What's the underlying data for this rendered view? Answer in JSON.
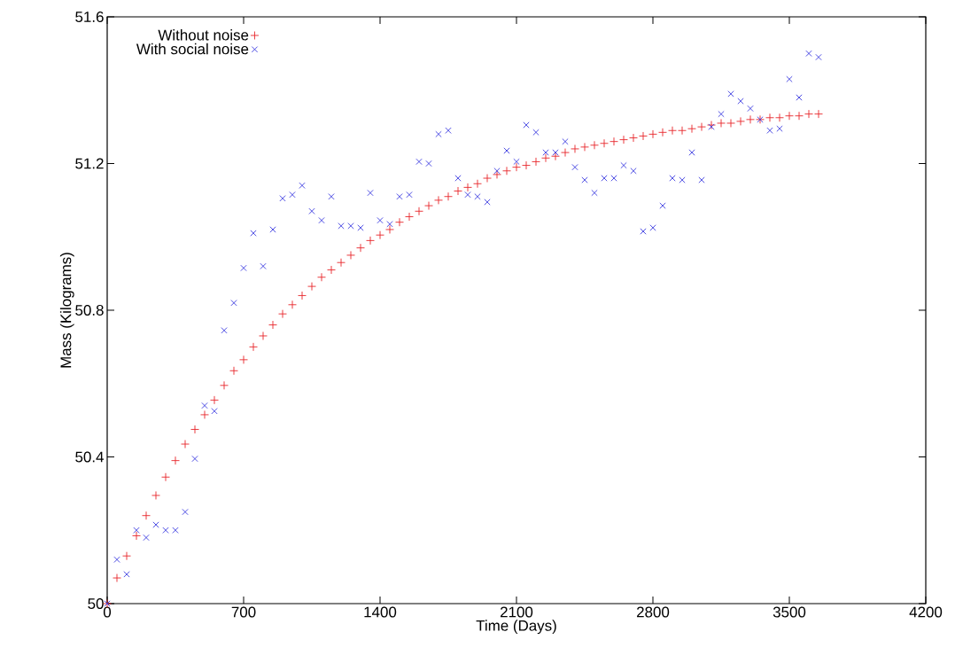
{
  "chart_data": {
    "type": "scatter",
    "xlabel": "Time (Days)",
    "ylabel": "Mass (Kilograms)",
    "x": [
      0,
      50,
      100,
      150,
      200,
      250,
      300,
      350,
      400,
      450,
      500,
      550,
      600,
      650,
      700,
      750,
      800,
      850,
      900,
      950,
      1000,
      1050,
      1100,
      1150,
      1200,
      1250,
      1300,
      1350,
      1400,
      1450,
      1500,
      1550,
      1600,
      1650,
      1700,
      1750,
      1800,
      1850,
      1900,
      1950,
      2000,
      2050,
      2100,
      2150,
      2200,
      2250,
      2300,
      2350,
      2400,
      2450,
      2500,
      2550,
      2600,
      2650,
      2700,
      2750,
      2800,
      2850,
      2900,
      2950,
      3000,
      3050,
      3100,
      3150,
      3200,
      3250,
      3300,
      3350,
      3400,
      3450,
      3500,
      3550,
      3600,
      3650
    ],
    "series": [
      {
        "name": "Without noise",
        "color": "#e8262a",
        "marker": "plus",
        "values": [
          50.0,
          50.07,
          50.13,
          50.185,
          50.24,
          50.295,
          50.345,
          50.39,
          50.435,
          50.475,
          50.515,
          50.555,
          50.595,
          50.635,
          50.665,
          50.7,
          50.73,
          50.76,
          50.79,
          50.815,
          50.84,
          50.865,
          50.89,
          50.91,
          50.93,
          50.95,
          50.97,
          50.99,
          51.005,
          51.02,
          51.04,
          51.055,
          51.07,
          51.085,
          51.1,
          51.11,
          51.125,
          51.135,
          51.145,
          51.16,
          51.17,
          51.18,
          51.19,
          51.195,
          51.205,
          51.215,
          51.22,
          51.23,
          51.24,
          51.245,
          51.25,
          51.255,
          51.26,
          51.265,
          51.27,
          51.275,
          51.28,
          51.285,
          51.29,
          51.29,
          51.295,
          51.3,
          51.305,
          51.31,
          51.31,
          51.315,
          51.32,
          51.32,
          51.325,
          51.325,
          51.33,
          51.33,
          51.335,
          51.335
        ]
      },
      {
        "name": "With social noise",
        "color": "#3b3be0",
        "marker": "cross",
        "values": [
          50.0,
          50.12,
          50.08,
          50.2,
          50.18,
          50.215,
          50.2,
          50.2,
          50.25,
          50.395,
          50.54,
          50.525,
          50.745,
          50.82,
          50.915,
          51.01,
          50.92,
          51.02,
          51.105,
          51.115,
          51.14,
          51.07,
          51.045,
          51.11,
          51.03,
          51.03,
          51.025,
          51.12,
          51.045,
          51.035,
          51.11,
          51.115,
          51.205,
          51.2,
          51.28,
          51.29,
          51.16,
          51.115,
          51.11,
          51.095,
          51.18,
          51.235,
          51.205,
          51.305,
          51.285,
          51.23,
          51.23,
          51.26,
          51.19,
          51.155,
          51.12,
          51.16,
          51.16,
          51.195,
          51.18,
          51.015,
          51.025,
          51.085,
          51.16,
          51.155,
          51.23,
          51.155,
          51.3,
          51.335,
          51.39,
          51.37,
          51.35,
          51.32,
          51.29,
          51.295,
          51.43,
          51.38,
          51.5,
          51.49
        ]
      }
    ],
    "xlim": [
      0,
      4200
    ],
    "xticks": [
      0,
      700,
      1400,
      2100,
      2800,
      3500,
      4200
    ],
    "ylim": [
      50,
      51.6
    ],
    "yticks": [
      50,
      50.4,
      50.8,
      51.2,
      51.6
    ],
    "grid": false,
    "legend": "top left"
  }
}
